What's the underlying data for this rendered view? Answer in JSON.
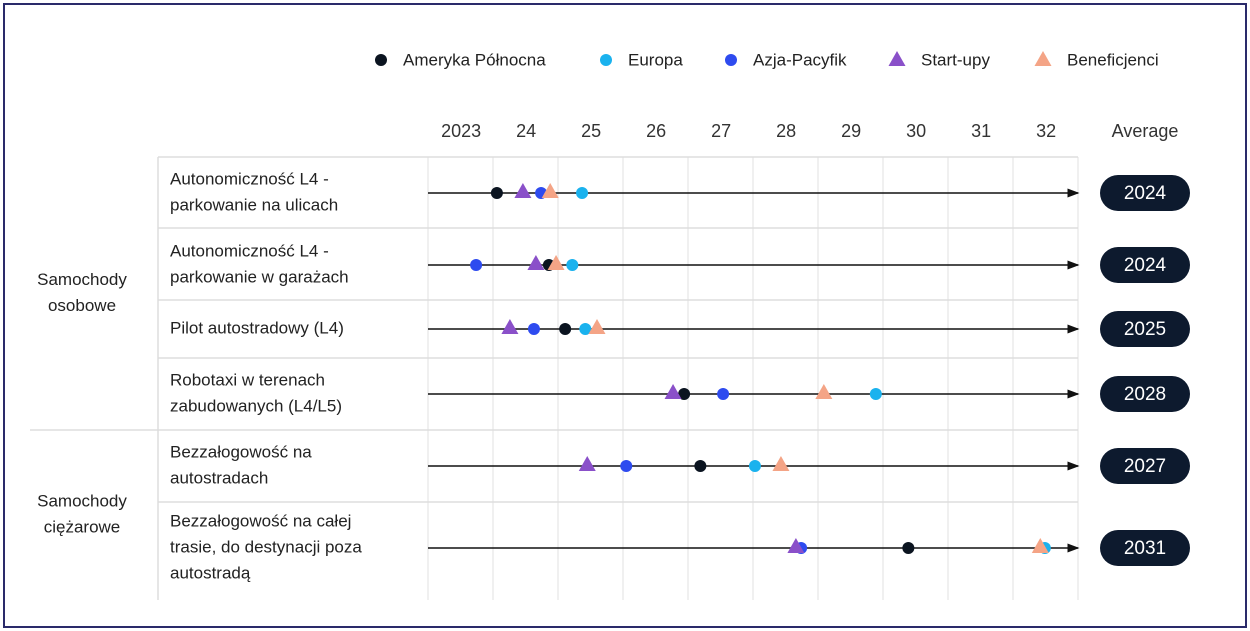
{
  "chart_data": {
    "type": "dot",
    "series": [
      {
        "name": "Ameryka Północna",
        "color": "#0b1420",
        "marker": "circle",
        "values": [
          2023.55,
          2024.35,
          2024.6,
          2026.43,
          2026.68,
          2029.88
        ]
      },
      {
        "name": "Europa",
        "color": "#1ab2ee",
        "marker": "circle",
        "values": [
          2024.86,
          2024.71,
          2024.91,
          2029.38,
          2027.52,
          2031.98
        ]
      },
      {
        "name": "Azja-Pacyfik",
        "color": "#2e4bef",
        "marker": "circle",
        "values": [
          2024.23,
          2023.23,
          2024.12,
          2027.03,
          2025.54,
          2028.23
        ]
      },
      {
        "name": "Start-upy",
        "color": "#8a50c9",
        "marker": "triangle",
        "values": [
          2023.95,
          2024.15,
          2023.75,
          2026.26,
          2024.94,
          2028.15
        ]
      },
      {
        "name": "Beneficjenci",
        "color": "#f4a486",
        "marker": "triangle",
        "values": [
          2024.37,
          2024.46,
          2025.09,
          2028.58,
          2027.92,
          2031.91
        ]
      }
    ],
    "categories": [
      [
        "Autonomiczność L4 -",
        "parkowanie na ulicach"
      ],
      [
        "Autonomiczność L4 -",
        "parkowanie w garażach"
      ],
      [
        "Pilot autostradowy (L4)"
      ],
      [
        "Robotaxi w terenach",
        "zabudowanych (L4/L5)"
      ],
      [
        "Bezzałogowość na",
        "autostradach"
      ],
      [
        "Bezzałogowość na całej",
        "trasie, do destynacji poza",
        "autostradą"
      ]
    ],
    "groups": [
      {
        "label": [
          "Samochody",
          "osobowe"
        ],
        "rows": [
          0,
          3
        ]
      },
      {
        "label": [
          "Samochody",
          "ciężarowe"
        ],
        "rows": [
          4,
          5
        ]
      }
    ],
    "average_label": "Average",
    "averages": [
      2024,
      2024,
      2025,
      2028,
      2027,
      2031
    ],
    "xlim": [
      2022.49,
      2032.49
    ],
    "xticks": [
      2023,
      {
        "value": 2024,
        "label": "24"
      },
      {
        "value": 2025,
        "label": "25"
      },
      {
        "value": 2026,
        "label": "26"
      },
      {
        "value": 2027,
        "label": "27"
      },
      {
        "value": 2028,
        "label": "28"
      },
      {
        "value": 2029,
        "label": "29"
      },
      {
        "value": 2030,
        "label": "30"
      },
      {
        "value": 2031,
        "label": "31"
      },
      {
        "value": 2032,
        "label": "32"
      }
    ]
  }
}
